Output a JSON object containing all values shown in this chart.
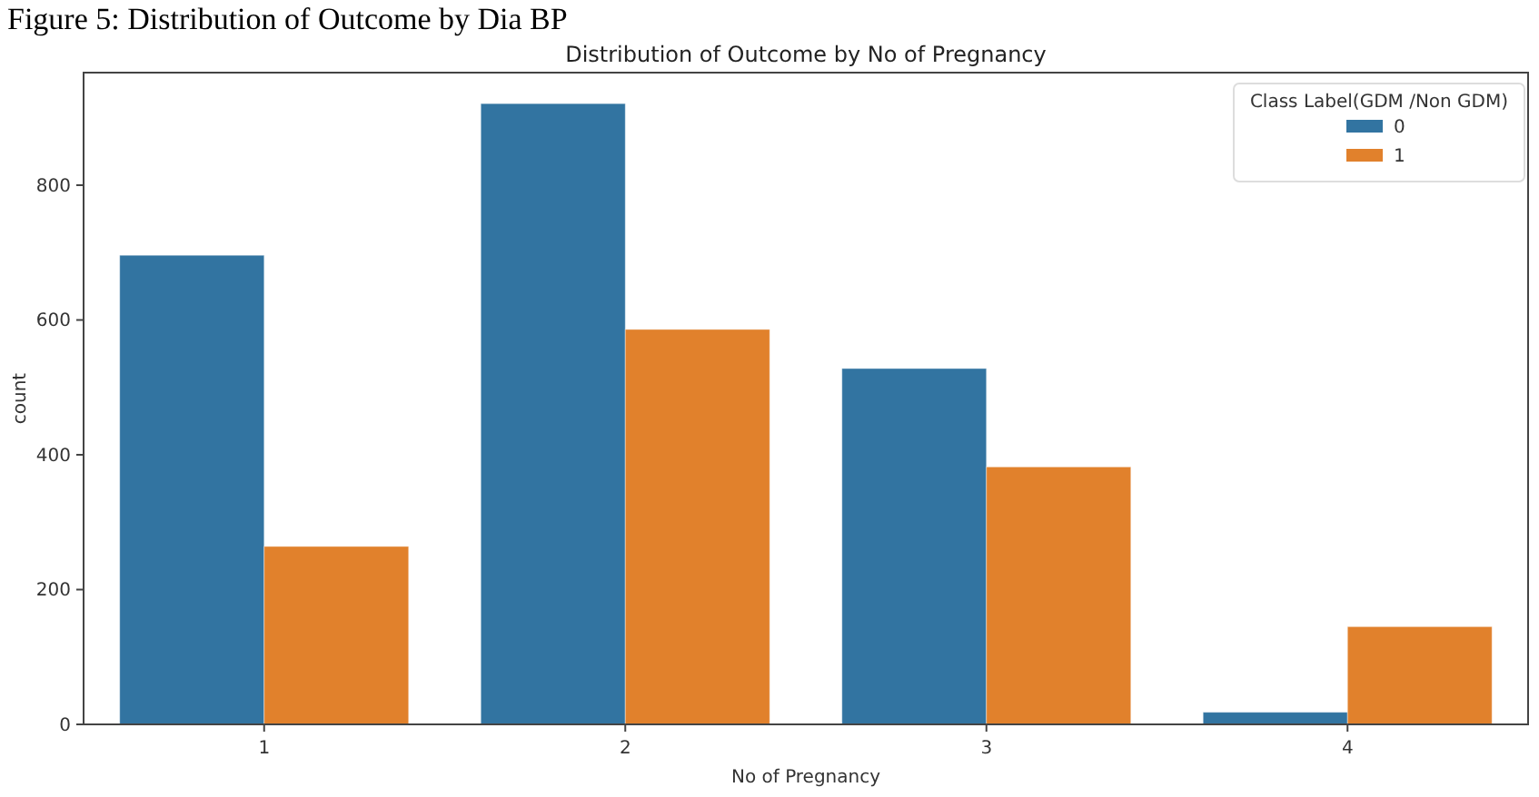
{
  "chart_data": {
    "type": "bar",
    "title": "Distribution of Outcome by No of Pregnancy",
    "xlabel": "No of Pregnancy",
    "ylabel": "count",
    "legend_title": "Class Label(GDM /Non GDM)",
    "annotations": [
      "Figure 5: Distribution of Outcome by Dia BP"
    ],
    "categories": [
      "1",
      "2",
      "3",
      "4"
    ],
    "series": [
      {
        "name": "0",
        "color": "#3274a1",
        "values": [
          696,
          921,
          528,
          18
        ]
      },
      {
        "name": "1",
        "color": "#e1812c",
        "values": [
          264,
          586,
          382,
          145
        ]
      }
    ],
    "ylim": [
      0,
      967
    ],
    "yticks": [
      0,
      200,
      400,
      600,
      800
    ],
    "grid": false,
    "legend": "top right"
  }
}
